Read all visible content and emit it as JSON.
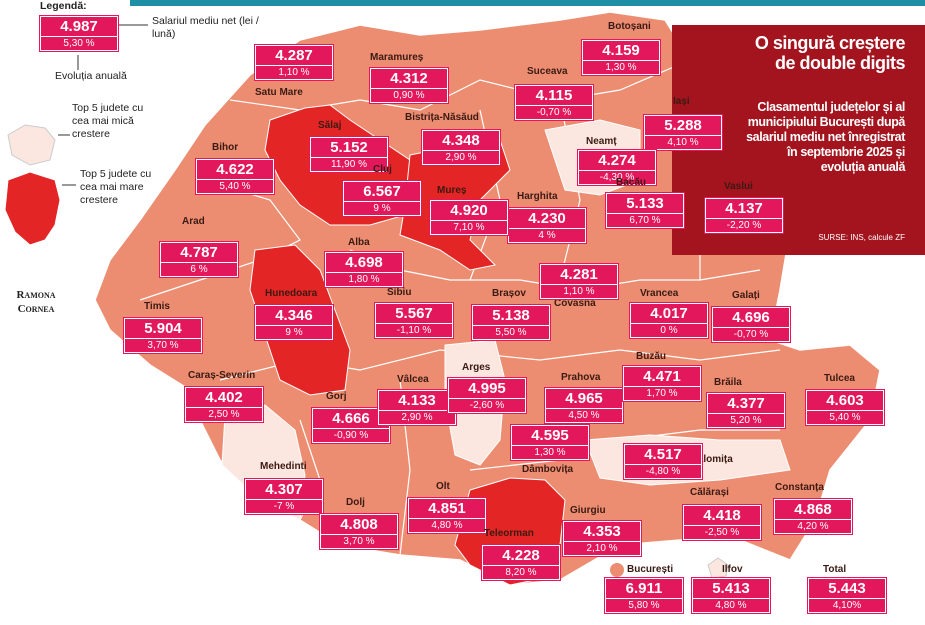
{
  "legend": {
    "title": "Legendă:",
    "sample_salary": "4.987",
    "sample_change": "5,30 %",
    "salary_label": "Salariul mediu net (lei / lună)",
    "change_label": "Evoluția anuală",
    "lowest_label": "Top 5 judete cu cea mai mică crestere",
    "highest_label": "Top 5 judete cu cea mai mare crestere"
  },
  "author": "Ramona Cornea",
  "panel": {
    "title": "O singură creștere de double digits",
    "text": "Clasamentul județelor și al municipiului București după salariul mediu net înregistrat în septembrie 2025 și evoluția anuală",
    "sources": "SURSE: INS, calcule ZF"
  },
  "counties": [
    {
      "name": "Satu Mare",
      "salary": "4.287",
      "change": "1,10 %"
    },
    {
      "name": "Maramureș",
      "salary": "4.312",
      "change": "0,90 %"
    },
    {
      "name": "Suceava",
      "salary": "4.115",
      "change": "-0,70 %"
    },
    {
      "name": "Botoșani",
      "salary": "4.159",
      "change": "1,30 %"
    },
    {
      "name": "Iași",
      "salary": "5.288",
      "change": "4,10 %"
    },
    {
      "name": "Neamț",
      "salary": "4.274",
      "change": "-4,30 %"
    },
    {
      "name": "Vaslui",
      "salary": "4.137",
      "change": "-2,20 %"
    },
    {
      "name": "Bacău",
      "salary": "5.133",
      "change": "6,70 %"
    },
    {
      "name": "Harghita",
      "salary": "4.230",
      "change": "4 %"
    },
    {
      "name": "Bistrița-Năsăud",
      "salary": "4.348",
      "change": "2,90 %"
    },
    {
      "name": "Sălaj",
      "salary": "5.152",
      "change": "11,90 %"
    },
    {
      "name": "Cluj",
      "salary": "6.567",
      "change": "9 %"
    },
    {
      "name": "Mureș",
      "salary": "4.920",
      "change": "7,10 %"
    },
    {
      "name": "Bihor",
      "salary": "4.622",
      "change": "5,40 %"
    },
    {
      "name": "Arad",
      "salary": "4.787",
      "change": "6 %"
    },
    {
      "name": "Alba",
      "salary": "4.698",
      "change": "1,80 %"
    },
    {
      "name": "Hunedoara",
      "salary": "4.346",
      "change": "9 %"
    },
    {
      "name": "Sibiu",
      "salary": "5.567",
      "change": "-1,10 %"
    },
    {
      "name": "Brașov",
      "salary": "5.138",
      "change": "5,50 %"
    },
    {
      "name": "Covasna",
      "salary": "4.281",
      "change": "1,10 %"
    },
    {
      "name": "Vrancea",
      "salary": "4.017",
      "change": "0 %"
    },
    {
      "name": "Galați",
      "salary": "4.696",
      "change": "-0,70 %"
    },
    {
      "name": "Timis",
      "salary": "5.904",
      "change": "3,70 %"
    },
    {
      "name": "Caraș-Severin",
      "salary": "4.402",
      "change": "2,50 %"
    },
    {
      "name": "Gorj",
      "salary": "4.666",
      "change": "-0,90 %"
    },
    {
      "name": "Vâlcea",
      "salary": "4.133",
      "change": "2,90 %"
    },
    {
      "name": "Arges",
      "salary": "4.995",
      "change": "-2,60 %"
    },
    {
      "name": "Prahova",
      "salary": "4.965",
      "change": "4,50 %"
    },
    {
      "name": "Buzău",
      "salary": "4.471",
      "change": "1,70 %"
    },
    {
      "name": "Brăila",
      "salary": "4.377",
      "change": "5,20 %"
    },
    {
      "name": "Tulcea",
      "salary": "4.603",
      "change": "5,40 %"
    },
    {
      "name": "Dâmbovița",
      "salary": "4.595",
      "change": "1,30 %"
    },
    {
      "name": "Ialomița",
      "salary": "4.517",
      "change": "-4,80 %"
    },
    {
      "name": "Mehedinti",
      "salary": "4.307",
      "change": "-7 %"
    },
    {
      "name": "Dolj",
      "salary": "4.808",
      "change": "3,70 %"
    },
    {
      "name": "Olt",
      "salary": "4.851",
      "change": "4,80 %"
    },
    {
      "name": "Teleorman",
      "salary": "4.228",
      "change": "8,20 %"
    },
    {
      "name": "Giurgiu",
      "salary": "4.353",
      "change": "2,10 %"
    },
    {
      "name": "Călărași",
      "salary": "4.418",
      "change": "-2,50 %"
    },
    {
      "name": "Constanța",
      "salary": "4.868",
      "change": "4,20 %"
    },
    {
      "name": "București",
      "salary": "6.911",
      "change": "5,80 %"
    },
    {
      "name": "Ilfov",
      "salary": "5.413",
      "change": "4,80 %"
    },
    {
      "name": "Total",
      "salary": "5.443",
      "change": "4,10%"
    }
  ]
}
